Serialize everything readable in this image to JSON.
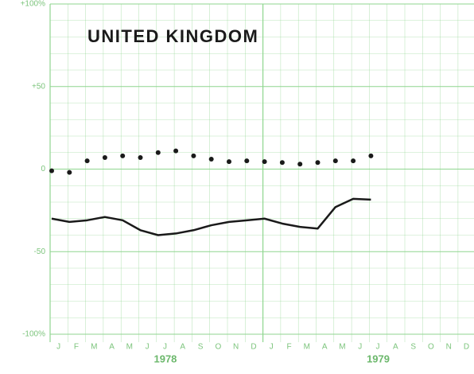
{
  "chart_data": {
    "type": "line",
    "title": "UNITED KINGDOM",
    "categories": [
      "J",
      "F",
      "M",
      "A",
      "M",
      "J",
      "J",
      "A",
      "S",
      "O",
      "N",
      "D",
      "J",
      "F",
      "M",
      "A",
      "M",
      "J",
      "J",
      "A",
      "S",
      "O",
      "N",
      "D"
    ],
    "years": [
      "1978",
      "1979"
    ],
    "series": [
      {
        "style": "dots",
        "color": "#1a1a1a",
        "values": [
          -1,
          -2,
          5,
          7,
          8,
          7,
          10,
          11,
          8,
          6,
          4.5,
          5,
          4.5,
          4,
          3,
          4,
          5,
          5,
          8,
          null,
          null,
          null,
          null,
          null
        ]
      },
      {
        "style": "line",
        "color": "#1a1a1a",
        "values": [
          -30,
          -32,
          -31,
          -29,
          -31,
          -37,
          -40,
          -39,
          -37,
          -34,
          -32,
          -31,
          -30,
          -33,
          -35,
          -36,
          -23,
          -18,
          -18.5,
          null,
          null,
          null,
          null,
          null
        ]
      }
    ],
    "ylim": [
      -100,
      100
    ],
    "yticks": [
      {
        "value": 100,
        "label": "+100%"
      },
      {
        "value": 50,
        "label": "+50"
      },
      0,
      -50,
      {
        "value": -100,
        "label": "-100%"
      }
    ],
    "minor_grid_step": 10,
    "grid": true,
    "grid_color": "#8fd68f"
  }
}
